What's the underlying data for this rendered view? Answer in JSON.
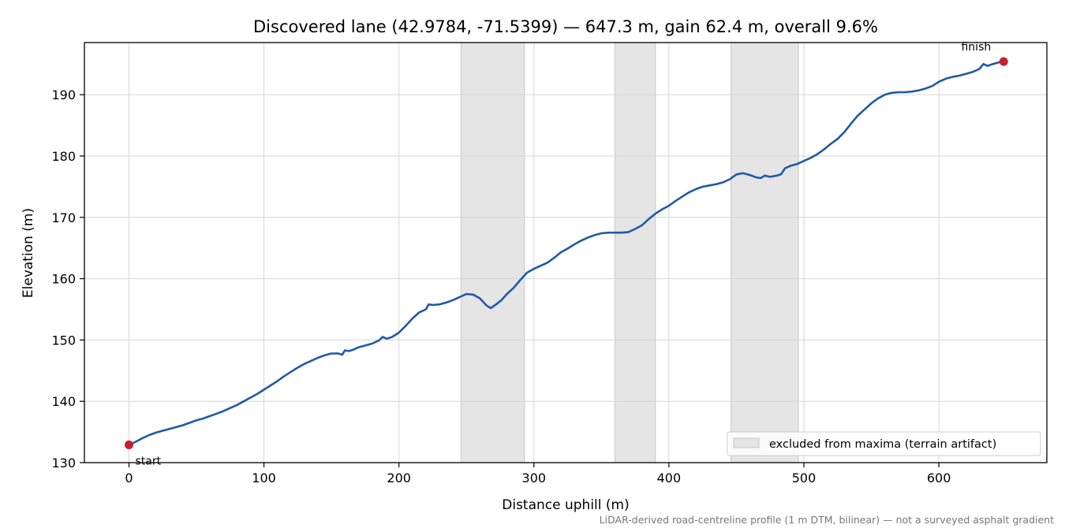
{
  "chart_data": {
    "type": "line",
    "title": "Discovered lane (42.9784, -71.5399) — 647.3 m, gain 62.4 m, overall 9.6%",
    "xlabel": "Distance uphill (m)",
    "ylabel": "Elevation (m)",
    "xlim": [
      -33,
      680
    ],
    "ylim": [
      130,
      198.5
    ],
    "xticks": [
      "0",
      "100",
      "200",
      "300",
      "400",
      "500",
      "600"
    ],
    "yticks": [
      "130",
      "140",
      "150",
      "160",
      "170",
      "180",
      "190"
    ],
    "grid": true,
    "line_color": "#1f5aa8",
    "marker_color": "#c8202f",
    "band_color": "#e5e5e5",
    "excluded_bands": [
      [
        246,
        293
      ],
      [
        360,
        390
      ],
      [
        446,
        496
      ]
    ],
    "legend": {
      "position": "bottom-right",
      "label": "excluded from maxima (terrain artifact)"
    },
    "series": [
      {
        "x": [
          0,
          5,
          10,
          15,
          20,
          25,
          30,
          35,
          40,
          45,
          50,
          55,
          60,
          65,
          70,
          75,
          80,
          85,
          90,
          95,
          100,
          105,
          110,
          115,
          120,
          125,
          130,
          135,
          140,
          145,
          150,
          155,
          158,
          160,
          163,
          166,
          170,
          175,
          180,
          185,
          188,
          191,
          195,
          200,
          205,
          210,
          215,
          220,
          222,
          225,
          230,
          235,
          240,
          245,
          250,
          255,
          260,
          265,
          268,
          272,
          276,
          280,
          285,
          290,
          295,
          300,
          305,
          310,
          315,
          320,
          325,
          330,
          335,
          340,
          345,
          350,
          355,
          360,
          365,
          370,
          375,
          380,
          385,
          390,
          395,
          400,
          405,
          410,
          415,
          420,
          425,
          430,
          435,
          440,
          445,
          450,
          455,
          460,
          465,
          468,
          471,
          475,
          480,
          483,
          486,
          490,
          495,
          500,
          505,
          510,
          515,
          520,
          525,
          530,
          535,
          540,
          545,
          550,
          555,
          560,
          565,
          570,
          575,
          580,
          585,
          590,
          595,
          600,
          605,
          610,
          615,
          620,
          625,
          630,
          633,
          636,
          640,
          645,
          648
        ],
        "y": [
          132.9,
          133.4,
          134.0,
          134.5,
          134.9,
          135.2,
          135.5,
          135.8,
          136.1,
          136.5,
          136.9,
          137.2,
          137.6,
          138.0,
          138.4,
          138.9,
          139.4,
          140.0,
          140.6,
          141.2,
          141.9,
          142.6,
          143.3,
          144.1,
          144.8,
          145.5,
          146.1,
          146.6,
          147.1,
          147.5,
          147.8,
          147.8,
          147.6,
          148.3,
          148.2,
          148.4,
          148.8,
          149.1,
          149.4,
          149.9,
          150.5,
          150.2,
          150.5,
          151.2,
          152.3,
          153.5,
          154.5,
          155.0,
          155.8,
          155.7,
          155.8,
          156.1,
          156.5,
          157.0,
          157.5,
          157.4,
          156.8,
          155.6,
          155.2,
          155.8,
          156.5,
          157.5,
          158.5,
          159.8,
          161.0,
          161.6,
          162.1,
          162.6,
          163.4,
          164.3,
          164.9,
          165.6,
          166.2,
          166.7,
          167.1,
          167.4,
          167.5,
          167.5,
          167.5,
          167.6,
          168.1,
          168.7,
          169.7,
          170.6,
          171.3,
          171.9,
          172.7,
          173.4,
          174.1,
          174.6,
          175.0,
          175.2,
          175.4,
          175.7,
          176.2,
          177.0,
          177.2,
          176.9,
          176.5,
          176.4,
          176.8,
          176.6,
          176.8,
          177.0,
          178.0,
          178.4,
          178.7,
          179.2,
          179.7,
          180.3,
          181.1,
          182.0,
          182.8,
          183.9,
          185.3,
          186.6,
          187.6,
          188.6,
          189.4,
          190.0,
          190.3,
          190.4,
          190.4,
          190.5,
          190.7,
          191.0,
          191.4,
          192.1,
          192.6,
          192.9,
          193.1,
          193.4,
          193.7,
          194.2,
          195.0,
          194.7,
          195.0,
          195.3,
          195.4
        ]
      }
    ],
    "points": [
      {
        "label": "start",
        "x": 0,
        "y": 132.9
      },
      {
        "label": "finish",
        "x": 648,
        "y": 195.4
      }
    ]
  },
  "footnote": "LiDAR-derived road-centreline profile (1 m DTM, bilinear) — not a surveyed asphalt gradient"
}
